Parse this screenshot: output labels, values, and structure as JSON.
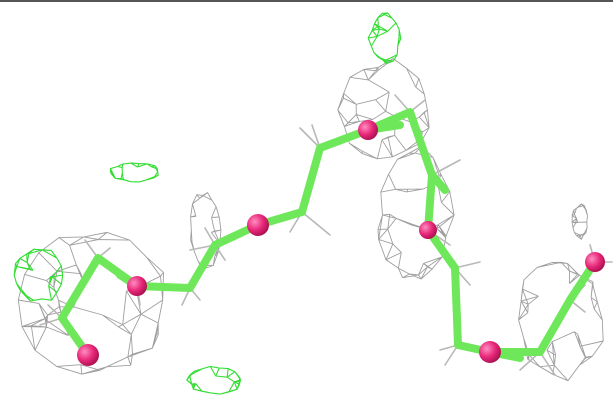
{
  "viewer": {
    "colors": {
      "background": "#ffffff",
      "border_top": "#555555",
      "mesh_gray": "#9a9a9a",
      "mesh_green": "#33dd33",
      "bond_green": "#6ee85a",
      "atom_magenta": "#e8287a",
      "hydrogen_gray": "#b8b8b8"
    },
    "icons": {
      "molecule": "molecule-stick-model",
      "density": "electron-density-mesh"
    }
  }
}
